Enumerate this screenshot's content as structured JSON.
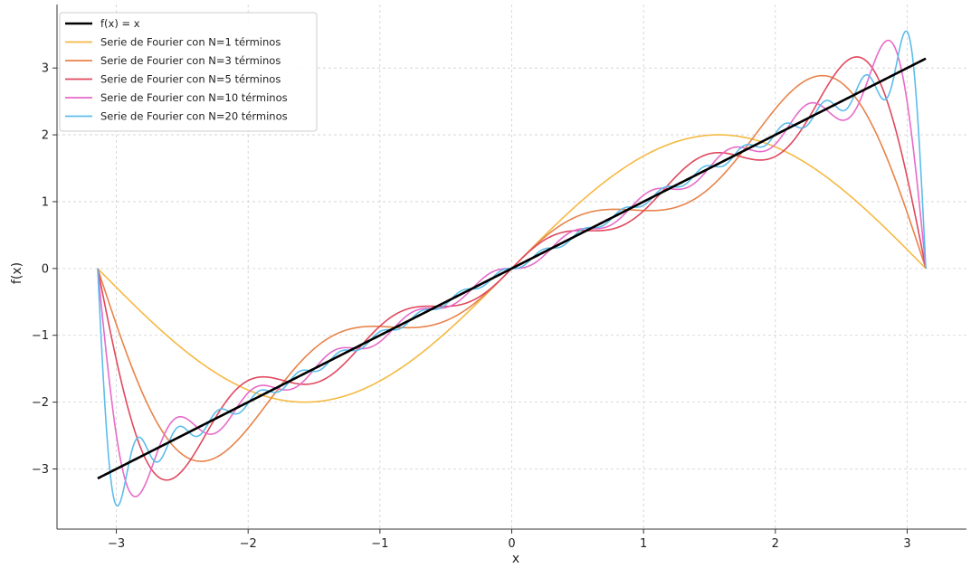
{
  "chart_data": {
    "type": "line",
    "title": "",
    "xlabel": "x",
    "ylabel": "f(x)",
    "xlim": [
      -3.45,
      3.45
    ],
    "ylim": [
      -3.9,
      3.95
    ],
    "xticks": [
      -3,
      -2,
      -1,
      0,
      1,
      2,
      3
    ],
    "yticks": [
      -3,
      -2,
      -1,
      0,
      1,
      2,
      3
    ],
    "xtick_labels": [
      "−3",
      "−2",
      "−1",
      "0",
      "1",
      "2",
      "3"
    ],
    "ytick_labels": [
      "−3",
      "−2",
      "−1",
      "0",
      "1",
      "2",
      "3"
    ],
    "grid": true,
    "legend_position": "top-left",
    "series": [
      {
        "name": "f(x) = x",
        "color": "#000000",
        "kind": "identity",
        "domain": [
          -3.14159,
          3.14159
        ]
      },
      {
        "name": "Serie de Fourier con N=1 términos",
        "color": "#F5B942",
        "kind": "fourier",
        "N": 1,
        "domain": [
          -3.14159,
          3.14159
        ]
      },
      {
        "name": "Serie de Fourier con N=3 términos",
        "color": "#E8834A",
        "kind": "fourier",
        "N": 3,
        "domain": [
          -3.14159,
          3.14159
        ]
      },
      {
        "name": "Serie de Fourier con N=5 términos",
        "color": "#E0485E",
        "kind": "fourier",
        "N": 5,
        "domain": [
          -3.14159,
          3.14159
        ]
      },
      {
        "name": "Serie de Fourier con N=10 términos",
        "color": "#E86AC8",
        "kind": "fourier",
        "N": 10,
        "domain": [
          -3.14159,
          3.14159
        ]
      },
      {
        "name": "Serie de Fourier con N=20 términos",
        "color": "#5CBDEB",
        "kind": "fourier",
        "N": 20,
        "domain": [
          -3.14159,
          3.14159
        ]
      }
    ]
  }
}
